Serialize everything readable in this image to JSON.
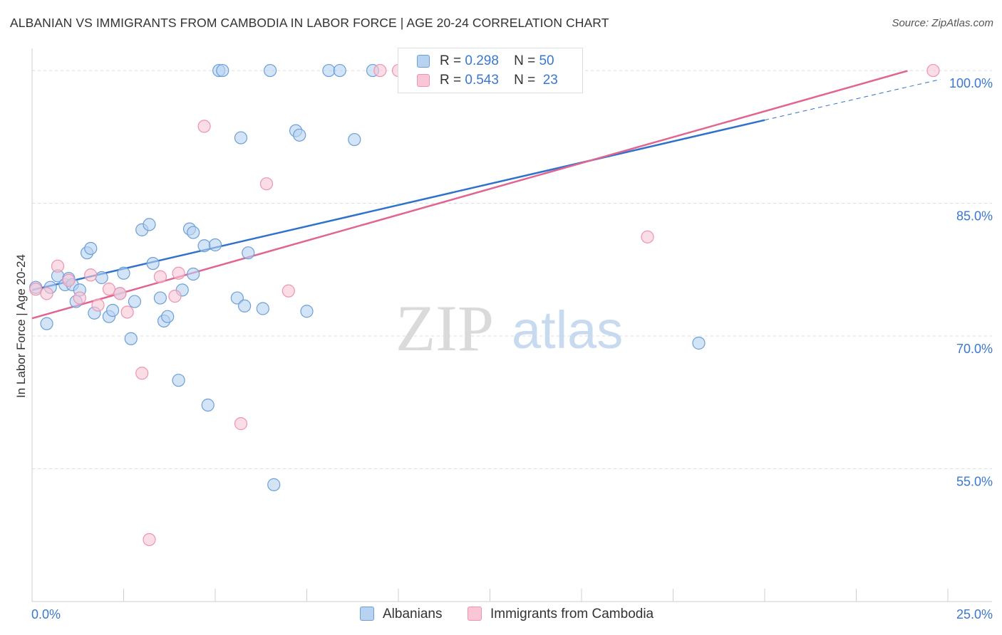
{
  "header": {
    "title": "ALBANIAN VS IMMIGRANTS FROM CAMBODIA IN LABOR FORCE | AGE 20-24 CORRELATION CHART",
    "source": "Source: ZipAtlas.com"
  },
  "watermark": {
    "zip": "ZIP",
    "atlas": "atlas"
  },
  "legend": {
    "albanians": {
      "r_label": "R =",
      "r_value": "0.298",
      "n_label": "N =",
      "n_value": "50"
    },
    "cambodia": {
      "r_label": "R =",
      "r_value": "0.543",
      "n_label": "N =",
      "n_value": "23"
    }
  },
  "bottom_legend": {
    "albanians": "Albanians",
    "cambodia": "Immigrants from Cambodia"
  },
  "colors": {
    "albanians_fill": "#b8d2f2",
    "albanians_stroke": "#6b9fd8",
    "albanians_line": "#2f72cc",
    "cambodia_fill": "#f9c6d6",
    "cambodia_stroke": "#ee93b1",
    "cambodia_line": "#e06592",
    "tick_label": "#3a78d0",
    "grid": "#dcdcdc"
  },
  "chart_data": {
    "type": "scatter",
    "title": "ALBANIAN VS IMMIGRANTS FROM CAMBODIA IN LABOR FORCE | AGE 20-24 CORRELATION CHART",
    "xlabel": "",
    "ylabel": "In Labor Force | Age 20-24",
    "xlim": [
      0,
      25
    ],
    "ylim": [
      40,
      102.5
    ],
    "x_tick_labels": [
      "0.0%",
      "25.0%"
    ],
    "y_ticks": [
      55,
      70,
      85,
      100
    ],
    "y_tick_labels": [
      "55.0%",
      "70.0%",
      "85.0%",
      "100.0%"
    ],
    "legend_position": "top-center",
    "series": [
      {
        "name": "Albanians",
        "r": 0.298,
        "n": 50,
        "trend": {
          "x_start": 0,
          "y_start": 75.2,
          "x_solid_end": 20,
          "x_end": 24.8,
          "slope": 0.96
        },
        "points": [
          [
            0.1,
            75.5
          ],
          [
            0.4,
            71.4
          ],
          [
            0.5,
            75.5
          ],
          [
            0.7,
            76.8
          ],
          [
            0.9,
            75.8
          ],
          [
            1.0,
            76.5
          ],
          [
            1.1,
            75.8
          ],
          [
            1.2,
            73.9
          ],
          [
            1.3,
            75.2
          ],
          [
            1.5,
            79.4
          ],
          [
            1.6,
            79.9
          ],
          [
            1.7,
            72.6
          ],
          [
            1.9,
            76.6
          ],
          [
            2.1,
            72.2
          ],
          [
            2.2,
            72.9
          ],
          [
            2.4,
            74.8
          ],
          [
            2.5,
            77.1
          ],
          [
            2.7,
            69.7
          ],
          [
            2.8,
            73.9
          ],
          [
            3.0,
            82.0
          ],
          [
            3.2,
            82.6
          ],
          [
            3.3,
            78.2
          ],
          [
            3.5,
            74.3
          ],
          [
            3.6,
            71.7
          ],
          [
            3.7,
            72.2
          ],
          [
            4.0,
            65.0
          ],
          [
            4.1,
            75.2
          ],
          [
            4.3,
            82.1
          ],
          [
            4.4,
            81.7
          ],
          [
            4.4,
            77.0
          ],
          [
            4.7,
            80.2
          ],
          [
            4.8,
            62.2
          ],
          [
            5.0,
            80.3
          ],
          [
            5.1,
            100.0
          ],
          [
            5.2,
            100.0
          ],
          [
            5.6,
            74.3
          ],
          [
            5.7,
            92.4
          ],
          [
            5.8,
            73.4
          ],
          [
            5.9,
            79.4
          ],
          [
            6.3,
            73.1
          ],
          [
            6.5,
            100.0
          ],
          [
            6.6,
            53.2
          ],
          [
            7.2,
            93.2
          ],
          [
            7.3,
            92.7
          ],
          [
            7.5,
            72.8
          ],
          [
            8.1,
            100.0
          ],
          [
            8.4,
            100.0
          ],
          [
            8.8,
            92.2
          ],
          [
            9.3,
            100.0
          ],
          [
            18.2,
            69.2
          ]
        ]
      },
      {
        "name": "Immigrants from Cambodia",
        "r": 0.543,
        "n": 23,
        "trend": {
          "x_start": 0,
          "y_start": 72.0,
          "x_end": 23.9,
          "slope": 1.17
        },
        "points": [
          [
            0.1,
            75.3
          ],
          [
            0.4,
            74.8
          ],
          [
            0.7,
            77.9
          ],
          [
            1.0,
            76.3
          ],
          [
            1.3,
            74.3
          ],
          [
            1.6,
            76.9
          ],
          [
            1.8,
            73.5
          ],
          [
            2.1,
            75.3
          ],
          [
            2.4,
            74.8
          ],
          [
            2.6,
            72.7
          ],
          [
            3.0,
            65.8
          ],
          [
            3.2,
            47.0
          ],
          [
            3.5,
            76.7
          ],
          [
            3.9,
            74.5
          ],
          [
            4.0,
            77.1
          ],
          [
            4.7,
            93.7
          ],
          [
            5.7,
            60.1
          ],
          [
            6.4,
            87.2
          ],
          [
            7.0,
            75.1
          ],
          [
            9.5,
            100.0
          ],
          [
            10.0,
            100.0
          ],
          [
            16.8,
            81.2
          ],
          [
            24.6,
            100.0
          ]
        ]
      }
    ]
  }
}
